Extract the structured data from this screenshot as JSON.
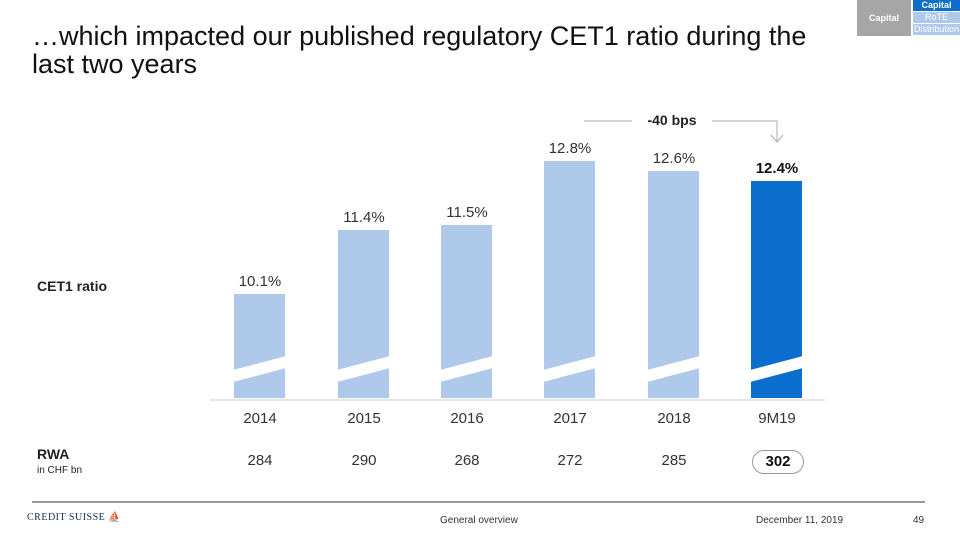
{
  "title": "…which impacted our published regulatory CET1 ratio during the last two years",
  "nav": {
    "section": "Capital",
    "items": [
      "Capital",
      "RoTE",
      "Distribution"
    ],
    "active": 0
  },
  "row_label": "CET1 ratio",
  "rwa_label": "RWA",
  "rwa_unit": "in CHF bn",
  "annotation": "-40 bps",
  "colors": {
    "bar": "#aec9e9",
    "highlight": "#0c6fcd"
  },
  "chart_data": {
    "type": "bar",
    "categories": [
      "2014",
      "2015",
      "2016",
      "2017",
      "2018",
      "9M19"
    ],
    "values": [
      10.1,
      11.4,
      11.5,
      12.8,
      12.6,
      12.4
    ],
    "labels": [
      "10.1%",
      "11.4%",
      "11.5%",
      "12.8%",
      "12.6%",
      "12.4%"
    ],
    "rwa": [
      "284",
      "290",
      "268",
      "272",
      "285",
      "302"
    ],
    "highlight_index": 5,
    "ylabel": "CET1 ratio"
  },
  "footer": {
    "brand": "CREDIT SUISSE",
    "center": "General overview",
    "date": "December 11, 2019",
    "page": "49"
  }
}
